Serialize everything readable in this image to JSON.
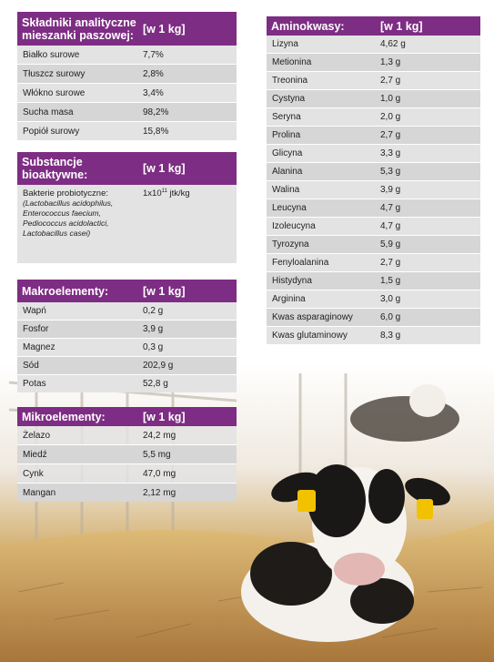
{
  "analytical": {
    "title": "Składniki analityczne mieszanki paszowej:",
    "unit": "[w 1 kg]",
    "rows": [
      {
        "name": "Białko surowe",
        "value": "7,7%"
      },
      {
        "name": "Tłuszcz surowy",
        "value": "2,8%"
      },
      {
        "name": "Włókno surowe",
        "value": "3,4%"
      },
      {
        "name": "Sucha masa",
        "value": "98,2%"
      },
      {
        "name": "Popiół surowy",
        "value": "15,8%"
      }
    ]
  },
  "bioactive": {
    "title": "Substancje bioaktywne:",
    "unit": "[w 1 kg]",
    "name": "Bakterie probiotyczne:",
    "strains": "(Lactobacillus acidophilus, Enterococcus faecium, Pediococcus acidolactici, Lactobacillus casei)",
    "value_base": "1x10",
    "value_exp": "11",
    "value_unit": " jtk/kg"
  },
  "macro": {
    "title": "Makroelementy:",
    "unit": "[w 1 kg]",
    "rows": [
      {
        "name": "Wapń",
        "value": "0,2 g"
      },
      {
        "name": "Fosfor",
        "value": "3,9 g"
      },
      {
        "name": "Magnez",
        "value": "0,3 g"
      },
      {
        "name": "Sód",
        "value": "202,9 g"
      },
      {
        "name": "Potas",
        "value": "52,8 g"
      }
    ]
  },
  "micro": {
    "title": "Mikroelementy:",
    "unit": "[w 1 kg]",
    "rows": [
      {
        "name": "Żelazo",
        "value": "24,2 mg"
      },
      {
        "name": "Miedź",
        "value": "5,5 mg"
      },
      {
        "name": "Cynk",
        "value": "47,0 mg"
      },
      {
        "name": "Mangan",
        "value": "2,12 mg"
      }
    ]
  },
  "amino": {
    "title": "Aminokwasy:",
    "unit": "[w 1 kg]",
    "rows": [
      {
        "name": "Lizyna",
        "value": "4,62 g"
      },
      {
        "name": "Metionina",
        "value": "1,3 g"
      },
      {
        "name": "Treonina",
        "value": "2,7 g"
      },
      {
        "name": "Cystyna",
        "value": "1,0 g"
      },
      {
        "name": "Seryna",
        "value": "2,0 g"
      },
      {
        "name": "Prolina",
        "value": "2,7 g"
      },
      {
        "name": "Glicyna",
        "value": "3,3 g"
      },
      {
        "name": "Alanina",
        "value": "5,3 g"
      },
      {
        "name": "Walina",
        "value": "3,9 g"
      },
      {
        "name": "Leucyna",
        "value": "4,7 g"
      },
      {
        "name": "Izoleucyna",
        "value": "4,7 g"
      },
      {
        "name": "Tyrozyna",
        "value": "5,9 g"
      },
      {
        "name": "Fenyloalanina",
        "value": "2,7 g"
      },
      {
        "name": "Histydyna",
        "value": "1,5 g"
      },
      {
        "name": "Arginina",
        "value": "3,0 g"
      },
      {
        "name": "Kwas asparaginowy",
        "value": "6,0 g"
      },
      {
        "name": "Kwas glutaminowy",
        "value": "8,3 g"
      }
    ]
  }
}
